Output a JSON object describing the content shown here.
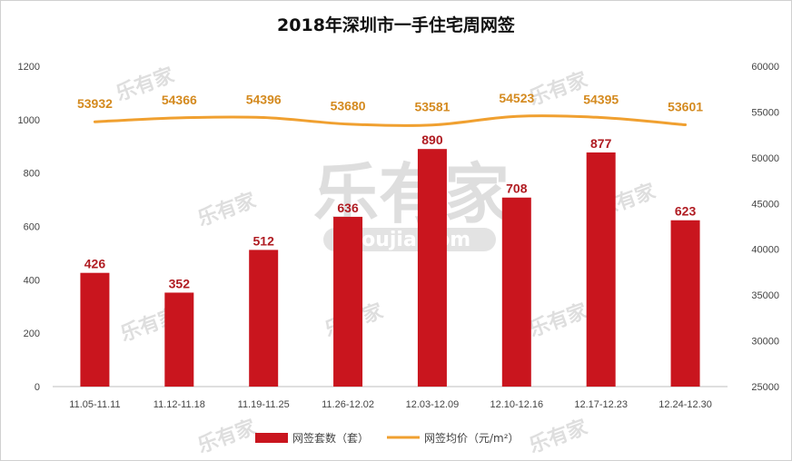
{
  "chart_data": {
    "type": "bar",
    "title": "2018年深圳市一手住宅周网签",
    "categories": [
      "11.05-11.11",
      "11.12-11.18",
      "11.19-11.25",
      "11.26-12.02",
      "12.03-12.09",
      "12.10-12.16",
      "12.17-12.23",
      "12.24-12.30"
    ],
    "series": [
      {
        "name": "网签套数（套）",
        "type": "bar",
        "axis": "left",
        "values": [
          426,
          352,
          512,
          636,
          890,
          708,
          877,
          623
        ],
        "color": "#c9151e",
        "label_color": "#b01c22"
      },
      {
        "name": "网签均价（元/m²）",
        "type": "line",
        "axis": "right",
        "values": [
          53932,
          54366,
          54396,
          53680,
          53581,
          54523,
          54395,
          53601
        ],
        "color": "#f0a030",
        "label_color": "#d48a1f"
      }
    ],
    "y_left": {
      "ylim": [
        0,
        1200
      ],
      "ticks": [
        0,
        200,
        400,
        600,
        800,
        1000,
        1200
      ]
    },
    "y_right": {
      "ylim": [
        25000,
        60000
      ],
      "ticks": [
        25000,
        30000,
        35000,
        40000,
        45000,
        50000,
        55000,
        60000
      ]
    },
    "grid": false,
    "legend_position": "bottom"
  },
  "watermark": {
    "brand": "乐有家",
    "site": "youjia.com",
    "color": "#9a9a9a"
  }
}
